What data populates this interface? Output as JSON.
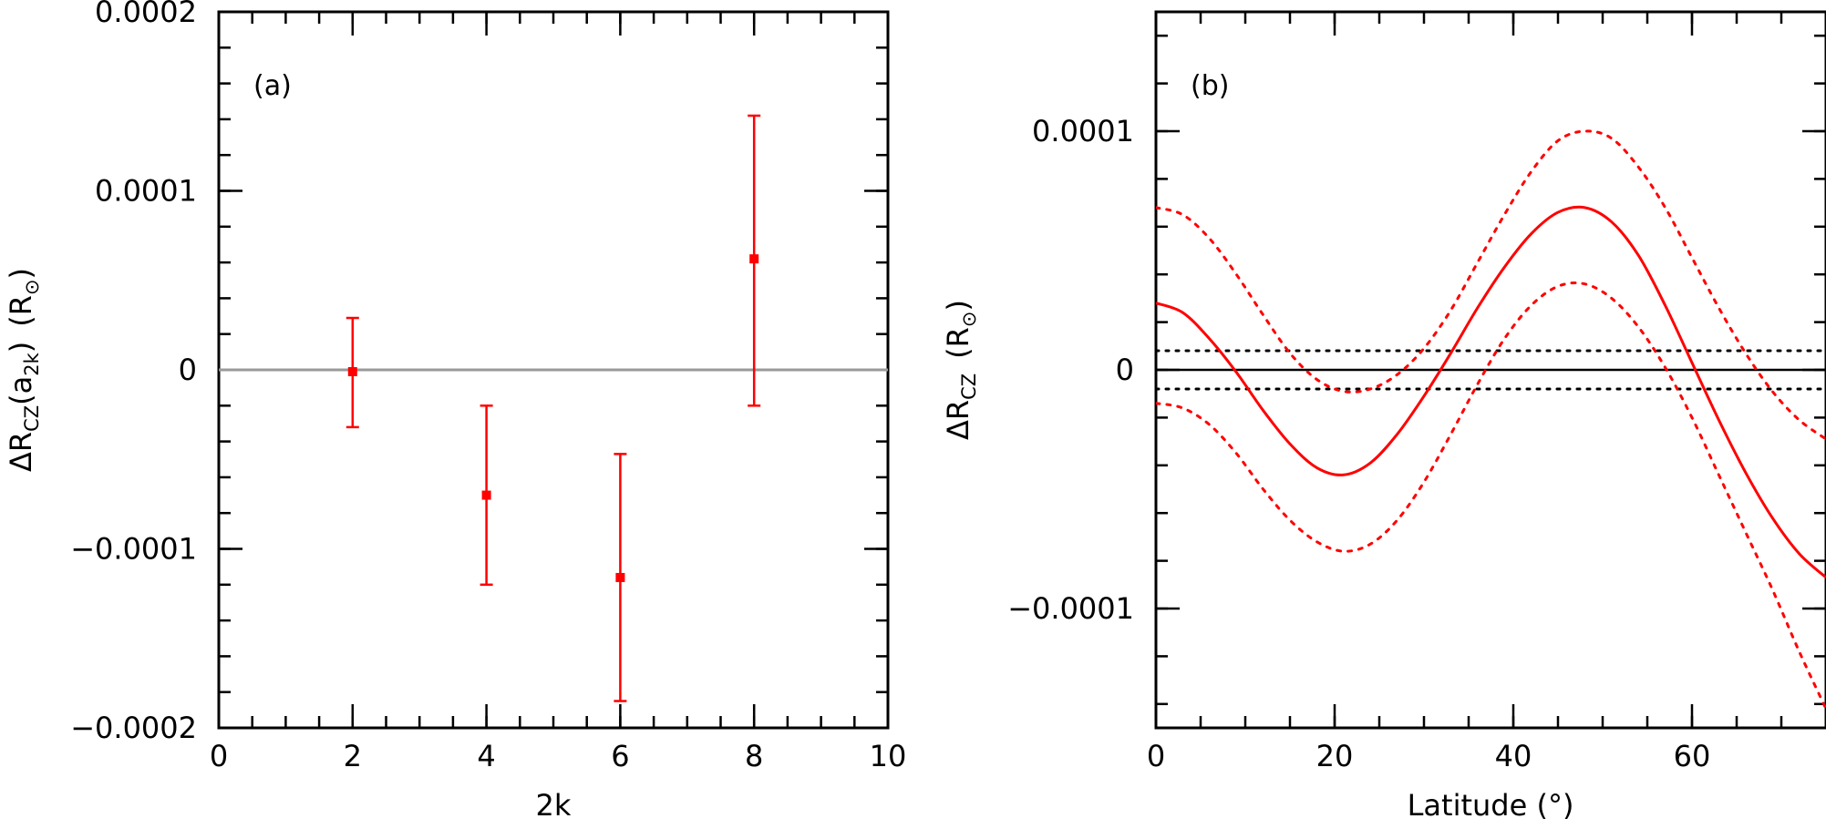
{
  "colors": {
    "data": "#ff0000",
    "zero_line_a": "#999999",
    "axes": "#000000"
  },
  "chart_data": [
    {
      "type": "scatter",
      "panel_label": "(a)",
      "xlabel": "2k",
      "ylabel": {
        "main": "ΔR",
        "sub": "CZ",
        "arg_open": "(a",
        "arg_sub": "2k",
        "arg_close": ")",
        "unit": "(R",
        "unit_sym": "⊙",
        "unit_close": ")"
      },
      "xlim": [
        0,
        10
      ],
      "ylim": [
        -0.0002,
        0.0002
      ],
      "xticks": [
        0,
        2,
        4,
        6,
        8,
        10
      ],
      "xtick_labels": [
        "0",
        "2",
        "4",
        "6",
        "8",
        "10"
      ],
      "yticks": [
        -0.0002,
        -0.0001,
        0,
        0.0001,
        0.0002
      ],
      "ytick_labels": [
        "−0.0002",
        "−0.0001",
        "0",
        "0.0001",
        "0.0002"
      ],
      "reference_line": 0,
      "points": [
        {
          "x": 2,
          "y": -1e-06,
          "ylow": -3.2e-05,
          "yhigh": 2.9e-05
        },
        {
          "x": 4,
          "y": -7e-05,
          "ylow": -0.00012,
          "yhigh": -2e-05
        },
        {
          "x": 6,
          "y": -0.000116,
          "ylow": -0.000185,
          "yhigh": -4.7e-05
        },
        {
          "x": 8,
          "y": 6.2e-05,
          "ylow": -2e-05,
          "yhigh": 0.000142
        }
      ],
      "grid": false
    },
    {
      "type": "line",
      "panel_label": "(b)",
      "xlabel": "Latitude (°)",
      "ylabel": {
        "main": "ΔR",
        "sub": "CZ",
        "unit": "(R",
        "unit_sym": "⊙",
        "unit_close": ")"
      },
      "xlim": [
        0,
        75
      ],
      "ylim": [
        -0.00015,
        0.00015
      ],
      "xticks": [
        0,
        20,
        40,
        60
      ],
      "xtick_labels": [
        "0",
        "20",
        "40",
        "60"
      ],
      "yticks": [
        -0.0001,
        0,
        0.0001
      ],
      "ytick_labels": [
        "−0.0001",
        "0",
        "0.0001"
      ],
      "reference_line": 0,
      "reference_band": [
        -8e-06,
        8e-06
      ],
      "x": [
        0,
        3,
        6,
        9,
        12,
        15,
        18,
        21,
        24,
        27,
        30,
        33,
        36,
        39,
        42,
        45,
        48,
        51,
        54,
        57,
        60,
        63,
        66,
        69,
        72,
        75
      ],
      "series": [
        {
          "style": "solid",
          "values": [
            2.8e-05,
            2.4e-05,
            1.3e-05,
            -1e-06,
            -1.7e-05,
            -3.1e-05,
            -4.1e-05,
            -4.4e-05,
            -3.9e-05,
            -2.7e-05,
            -1.1e-05,
            7e-06,
            2.6e-05,
            4.3e-05,
            5.7e-05,
            6.6e-05,
            6.8e-05,
            6.2e-05,
            4.8e-05,
            2.7e-05,
            3e-06,
            -2.1e-05,
            -4.3e-05,
            -6.2e-05,
            -7.7e-05,
            -8.7e-05
          ]
        },
        {
          "style": "dotted",
          "values": [
            6.8e-05,
            6.5e-05,
            5.5e-05,
            4e-05,
            2.3e-05,
            7e-06,
            -4e-06,
            -9e-06,
            -8e-06,
            -2e-06,
            9e-06,
            2.5e-05,
            4.5e-05,
            6.5e-05,
            8.3e-05,
            9.6e-05,
            0.0001,
            9.7e-05,
            8.5e-05,
            6.8e-05,
            4.7e-05,
            2.6e-05,
            7e-06,
            -9e-06,
            -2.1e-05,
            -2.9e-05
          ]
        },
        {
          "style": "dotted",
          "values": [
            -1.4e-05,
            -1.6e-05,
            -2.3e-05,
            -3.5e-05,
            -5e-05,
            -6.3e-05,
            -7.2e-05,
            -7.6e-05,
            -7.3e-05,
            -6.3e-05,
            -4.7e-05,
            -2.7e-05,
            -6e-06,
            1.3e-05,
            2.7e-05,
            3.5e-05,
            3.6e-05,
            3e-05,
            1.8e-05,
            1e-06,
            -2e-05,
            -4.4e-05,
            -6.8e-05,
            -9.2e-05,
            -0.000118,
            -0.000142
          ]
        }
      ],
      "grid": false
    }
  ]
}
